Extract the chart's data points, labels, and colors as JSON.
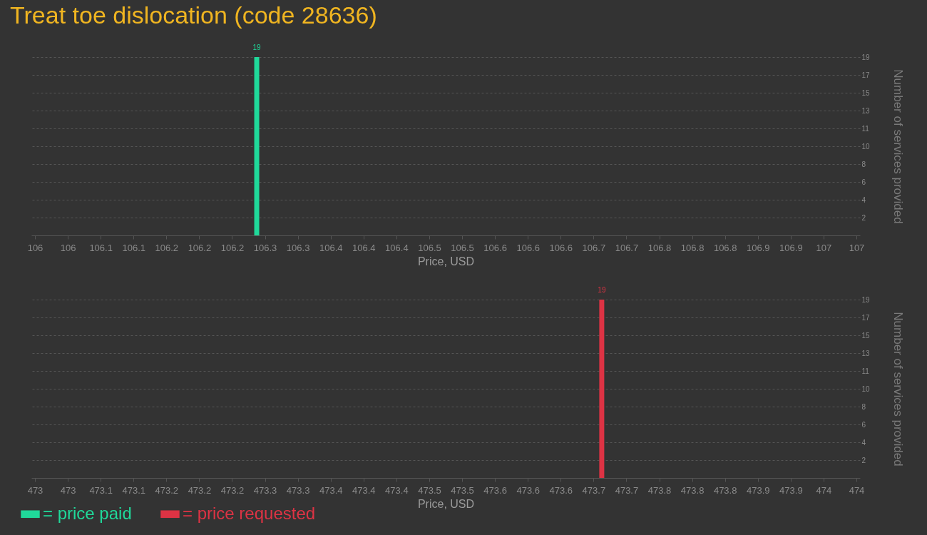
{
  "chart_data": [
    {
      "type": "bar",
      "title": "Treat toe dislocation (code 28636)",
      "xlabel": "Price, USD",
      "ylabel": "Number of services provided",
      "x": [
        106.27
      ],
      "series": [
        {
          "name": "= price paid",
          "color": "#20d99a",
          "values": [
            19
          ]
        }
      ],
      "xlim": [
        106,
        107
      ],
      "xticks": [
        106,
        {
          "value": 106.04,
          "label": "106"
        },
        {
          "value": 106.08,
          "label": "106.1"
        },
        {
          "value": 106.12,
          "label": "106.1"
        },
        {
          "value": 106.16,
          "label": "106.2"
        },
        106.2,
        {
          "value": 106.24,
          "label": "106.2"
        },
        {
          "value": 106.28,
          "label": "106.3"
        },
        {
          "value": 106.32,
          "label": "106.3"
        },
        {
          "value": 106.36,
          "label": "106.4"
        },
        106.4,
        {
          "value": 106.44,
          "label": "106.4"
        },
        {
          "value": 106.48,
          "label": "106.5"
        },
        {
          "value": 106.52,
          "label": "106.5"
        },
        {
          "value": 106.56,
          "label": "106.6"
        },
        106.6,
        {
          "value": 106.64,
          "label": "106.6"
        },
        {
          "value": 106.68,
          "label": "106.7"
        },
        {
          "value": 106.72,
          "label": "106.7"
        },
        {
          "value": 106.76,
          "label": "106.8"
        },
        106.8,
        {
          "value": 106.84,
          "label": "106.8"
        },
        {
          "value": 106.88,
          "label": "106.9"
        },
        {
          "value": 106.92,
          "label": "106.9"
        },
        {
          "value": 106.96,
          "label": "107"
        },
        107
      ],
      "ylim": [
        0,
        19
      ],
      "yticks": [
        {
          "value": 1.9,
          "label": "2"
        },
        {
          "value": 3.8,
          "label": "4"
        },
        {
          "value": 5.7,
          "label": "6"
        },
        {
          "value": 7.6,
          "label": "8"
        },
        {
          "value": 9.5,
          "label": "10"
        },
        {
          "value": 11.4,
          "label": "11"
        },
        {
          "value": 13.3,
          "label": "13"
        },
        {
          "value": 15.2,
          "label": "15"
        },
        {
          "value": 17.1,
          "label": "17"
        },
        19
      ],
      "grid": "y",
      "data_labels": true,
      "legend": "bottom left"
    },
    {
      "type": "bar",
      "xlabel": "Price, USD",
      "ylabel": "Number of services provided",
      "x": [
        473.69
      ],
      "series": [
        {
          "name": "= price requested",
          "color": "#dd3344",
          "values": [
            19
          ]
        }
      ],
      "xlim": [
        473,
        474
      ],
      "xticks": [
        473,
        {
          "value": 473.04,
          "label": "473"
        },
        {
          "value": 473.08,
          "label": "473.1"
        },
        {
          "value": 473.12,
          "label": "473.1"
        },
        {
          "value": 473.16,
          "label": "473.2"
        },
        473.2,
        {
          "value": 473.24,
          "label": "473.2"
        },
        {
          "value": 473.28,
          "label": "473.3"
        },
        {
          "value": 473.32,
          "label": "473.3"
        },
        {
          "value": 473.36,
          "label": "473.4"
        },
        473.4,
        {
          "value": 473.44,
          "label": "473.4"
        },
        {
          "value": 473.48,
          "label": "473.5"
        },
        {
          "value": 473.52,
          "label": "473.5"
        },
        {
          "value": 473.56,
          "label": "473.6"
        },
        473.6,
        {
          "value": 473.64,
          "label": "473.6"
        },
        {
          "value": 473.68,
          "label": "473.7"
        },
        {
          "value": 473.72,
          "label": "473.7"
        },
        {
          "value": 473.76,
          "label": "473.8"
        },
        473.8,
        {
          "value": 473.84,
          "label": "473.8"
        },
        {
          "value": 473.88,
          "label": "473.9"
        },
        {
          "value": 473.92,
          "label": "473.9"
        },
        {
          "value": 473.96,
          "label": "474"
        },
        474
      ],
      "ylim": [
        0,
        19
      ],
      "yticks": [
        {
          "value": 1.9,
          "label": "2"
        },
        {
          "value": 3.8,
          "label": "4"
        },
        {
          "value": 5.7,
          "label": "6"
        },
        {
          "value": 7.6,
          "label": "8"
        },
        {
          "value": 9.5,
          "label": "10"
        },
        {
          "value": 11.4,
          "label": "11"
        },
        {
          "value": 13.3,
          "label": "13"
        },
        {
          "value": 15.2,
          "label": "15"
        },
        {
          "value": 17.1,
          "label": "17"
        },
        19
      ],
      "grid": "y",
      "data_labels": true,
      "legend": "bottom left"
    }
  ]
}
